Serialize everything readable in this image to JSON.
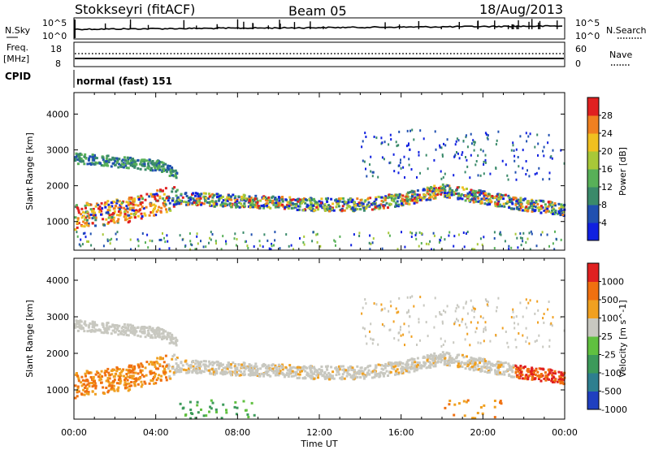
{
  "header": {
    "station": "Stokkseyri (fitACF)",
    "beam": "Beam 05",
    "date": "18/Aug/2013"
  },
  "status_panels": {
    "nsky_label": "N.Sky",
    "nsky_ticks": [
      "10^5",
      "10^0"
    ],
    "nsearch_label": "N.Search",
    "nsearch_ticks": [
      "10^5",
      "10^0"
    ],
    "freq_label": "Freq.",
    "freq_unit": "[MHz]",
    "freq_ticks": [
      "18",
      "8"
    ],
    "nave_label": "Nave",
    "nave_ticks": [
      "60",
      "0"
    ],
    "cpid_label": "CPID",
    "cpid_value": "normal (fast) 151"
  },
  "chart_data": [
    {
      "type": "heatmap",
      "panel": "power",
      "ylabel": "Slant Range [km]",
      "ylim": [
        200,
        4600
      ],
      "yticks": [
        "4000",
        "3000",
        "2000",
        "1000"
      ],
      "x_ticks": [
        "00:00",
        "04:00",
        "08:00",
        "12:00",
        "16:00",
        "20:00",
        "00:00"
      ],
      "colorbar": {
        "label": "Power [dB]",
        "ticks": [
          "28",
          "24",
          "20",
          "16",
          "12",
          "8",
          "4"
        ],
        "range": [
          0,
          32
        ],
        "colors": [
          "#1020e0",
          "#2050b0",
          "#3a8a6a",
          "#58b058",
          "#a8c838",
          "#f0c020",
          "#f08020",
          "#e02020"
        ]
      },
      "bands": [
        {
          "name": "main echo band",
          "points": [
            [
              0.0,
              1150
            ],
            [
              1.0,
              1250
            ],
            [
              2.0,
              1300
            ],
            [
              3.0,
              1400
            ],
            [
              4.0,
              1550
            ],
            [
              5.0,
              1700
            ],
            [
              6.0,
              1650
            ],
            [
              8.0,
              1600
            ],
            [
              10.0,
              1550
            ],
            [
              12.0,
              1500
            ],
            [
              14.0,
              1500
            ],
            [
              16.0,
              1650
            ],
            [
              18.0,
              1900
            ],
            [
              20.0,
              1700
            ],
            [
              22.0,
              1500
            ],
            [
              24.0,
              1350
            ]
          ]
        },
        {
          "name": "upper band",
          "points": [
            [
              0.0,
              2800
            ],
            [
              2.0,
              2700
            ],
            [
              4.0,
              2600
            ],
            [
              5.0,
              2350
            ]
          ]
        }
      ]
    },
    {
      "type": "heatmap",
      "panel": "velocity",
      "ylabel": "Slant Range [km]",
      "ylim": [
        200,
        4600
      ],
      "yticks": [
        "4000",
        "3000",
        "2000",
        "1000"
      ],
      "x_ticks": [
        "00:00",
        "04:00",
        "08:00",
        "12:00",
        "16:00",
        "20:00",
        "00:00"
      ],
      "xlabel": "Time UT",
      "colorbar": {
        "label": "Velocity [m s^-1]",
        "ticks": [
          "1000",
          "500",
          "100",
          "25",
          "-25",
          "-100",
          "-500",
          "-1000"
        ],
        "colors": [
          "#2040c0",
          "#2e7f8f",
          "#3c9a5a",
          "#60c040",
          "#c8c8c0",
          "#f0a020",
          "#f07010",
          "#e02020"
        ]
      }
    }
  ]
}
